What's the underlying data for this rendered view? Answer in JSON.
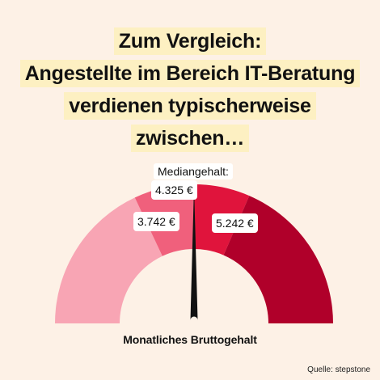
{
  "title": {
    "lines": [
      "Zum Vergleich:",
      "Angestellte im Bereich IT-Beratung",
      "verdienen typischerweise",
      "zwischen…"
    ]
  },
  "chart_data": {
    "type": "gauge",
    "segments": [
      {
        "from": 0,
        "to": 0.36,
        "color": "#f8a5b4"
      },
      {
        "from": 0.36,
        "to": 0.5,
        "color": "#f0607c"
      },
      {
        "from": 0.5,
        "to": 0.63,
        "color": "#e0143c"
      },
      {
        "from": 0.63,
        "to": 1,
        "color": "#b0002a"
      }
    ],
    "low_label": "3.742 €",
    "median_caption": "Mediangehalt:",
    "median_label": "4.325 €",
    "high_label": "5.242 €",
    "needle_fraction": 0.5,
    "axis_label": "Monatliches Bruttogehalt"
  },
  "source": "Quelle: stepstone",
  "colors": {
    "background": "#fdf1e6",
    "title_highlight": "#fdf0c2",
    "needle": "#111111"
  }
}
